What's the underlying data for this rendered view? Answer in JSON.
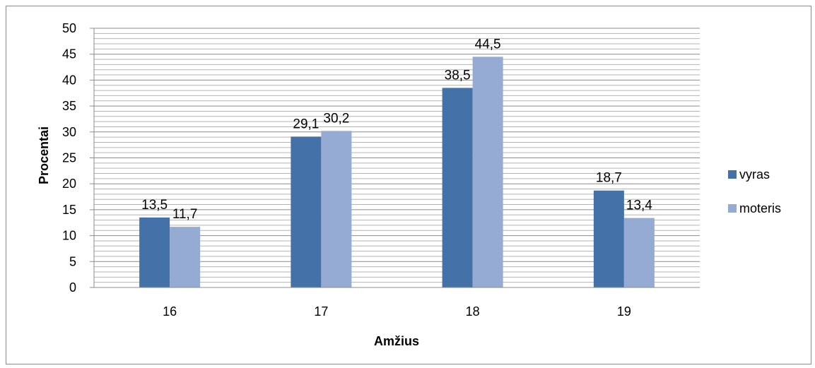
{
  "chart_data": {
    "type": "bar",
    "categories": [
      "16",
      "17",
      "18",
      "19"
    ],
    "series": [
      {
        "name": "vyras",
        "values": [
          13.5,
          29.1,
          38.5,
          18.7
        ],
        "labels": [
          "13,5",
          "29,1",
          "38,5",
          "18,7"
        ],
        "color": "#4472a8"
      },
      {
        "name": "moteris",
        "values": [
          11.7,
          30.2,
          44.5,
          13.4
        ],
        "labels": [
          "11,7",
          "30,2",
          "44,5",
          "13,4"
        ],
        "color": "#95abd4"
      }
    ],
    "title": "",
    "xlabel": "Amžius",
    "ylabel": "Procentai",
    "ylim": [
      0,
      50
    ],
    "yticks": [
      "0",
      "5",
      "10",
      "15",
      "20",
      "25",
      "30",
      "35",
      "40",
      "45",
      "50"
    ],
    "grid": true,
    "legend": "right"
  }
}
